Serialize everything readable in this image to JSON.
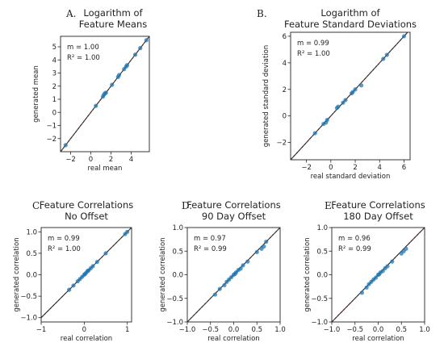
{
  "chart_data": [
    {
      "id": "A",
      "type": "scatter",
      "panel_label": "A.",
      "title_lines": [
        "Logarithm of",
        "Feature Means"
      ],
      "xlabel": "real mean",
      "ylabel": "generated mean",
      "xlim": [
        -3,
        5.8
      ],
      "ylim": [
        -3,
        5.8
      ],
      "xticks": [
        -2,
        0,
        2,
        4
      ],
      "yticks": [
        -2,
        -1,
        0,
        1,
        2,
        3,
        4,
        5
      ],
      "annotation": {
        "m": "m = 1.00",
        "r2": "R² = 1.00"
      },
      "reference_line": "identity",
      "marker_color": "#1f77b4",
      "points": [
        {
          "x": -2.5,
          "y": -2.5
        },
        {
          "x": 0.5,
          "y": 0.5
        },
        {
          "x": 1.2,
          "y": 1.2
        },
        {
          "x": 1.3,
          "y": 1.35
        },
        {
          "x": 1.4,
          "y": 1.45
        },
        {
          "x": 1.5,
          "y": 1.5
        },
        {
          "x": 2.1,
          "y": 2.1
        },
        {
          "x": 2.7,
          "y": 2.7
        },
        {
          "x": 2.8,
          "y": 2.85
        },
        {
          "x": 3.3,
          "y": 3.3
        },
        {
          "x": 3.5,
          "y": 3.5
        },
        {
          "x": 3.6,
          "y": 3.6
        },
        {
          "x": 4.4,
          "y": 4.4
        },
        {
          "x": 4.9,
          "y": 4.9
        },
        {
          "x": 5.5,
          "y": 5.5
        }
      ]
    },
    {
      "id": "B",
      "type": "scatter",
      "panel_label": "B.",
      "title_lines": [
        "Logarithm of",
        "Feature Standard Deviations"
      ],
      "xlabel": "real standard deviation",
      "ylabel": "generated standard deviation",
      "xlim": [
        -3.3,
        6.5
      ],
      "ylim": [
        -3.3,
        6.3
      ],
      "xticks": [
        -2,
        0,
        2,
        4,
        6
      ],
      "yticks": [
        -2,
        0,
        2,
        4,
        6
      ],
      "annotation": {
        "m": "m = 0.99",
        "r2": "R² = 1.00"
      },
      "reference_line": "identity",
      "marker_color": "#1f77b4",
      "points": [
        {
          "x": -1.3,
          "y": -1.3
        },
        {
          "x": -0.6,
          "y": -0.6
        },
        {
          "x": -0.4,
          "y": -0.5
        },
        {
          "x": -0.3,
          "y": -0.3
        },
        {
          "x": 0.5,
          "y": 0.6
        },
        {
          "x": 0.6,
          "y": 0.7
        },
        {
          "x": 1.0,
          "y": 1.0
        },
        {
          "x": 1.2,
          "y": 1.2
        },
        {
          "x": 1.7,
          "y": 1.7
        },
        {
          "x": 1.8,
          "y": 1.8
        },
        {
          "x": 2.0,
          "y": 2.0
        },
        {
          "x": 2.5,
          "y": 2.3
        },
        {
          "x": 4.3,
          "y": 4.3
        },
        {
          "x": 4.6,
          "y": 4.6
        },
        {
          "x": 6.0,
          "y": 6.0
        }
      ]
    },
    {
      "id": "C",
      "type": "scatter",
      "panel_label": "C.",
      "title_lines": [
        "Feature Correlations",
        "No Offset"
      ],
      "xlabel": "real correlation",
      "ylabel": "generated correlation",
      "xlim": [
        -1.0,
        1.1
      ],
      "ylim": [
        -1.1,
        1.1
      ],
      "xticks": [
        -1,
        0,
        1
      ],
      "yticks": [
        -1.0,
        -0.5,
        0.0,
        0.5,
        1.0
      ],
      "yticklabels": [
        "−1.0",
        "−0.5",
        "0.0",
        "0.5",
        "1.0"
      ],
      "xticklabels": [
        "−1",
        "0",
        "1"
      ],
      "annotation": {
        "m": "m = 0.99",
        "r2": "R² = 1.00"
      },
      "reference_line": "identity",
      "marker_color": "#1f77b4",
      "points": [
        {
          "x": -0.35,
          "y": -0.35
        },
        {
          "x": -0.25,
          "y": -0.25
        },
        {
          "x": -0.15,
          "y": -0.15
        },
        {
          "x": -0.1,
          "y": -0.1
        },
        {
          "x": -0.05,
          "y": -0.05
        },
        {
          "x": 0.0,
          "y": 0.0
        },
        {
          "x": 0.02,
          "y": 0.02
        },
        {
          "x": 0.05,
          "y": 0.05
        },
        {
          "x": 0.08,
          "y": 0.09
        },
        {
          "x": 0.1,
          "y": 0.1
        },
        {
          "x": 0.15,
          "y": 0.15
        },
        {
          "x": 0.2,
          "y": 0.2
        },
        {
          "x": 0.3,
          "y": 0.3
        },
        {
          "x": 0.5,
          "y": 0.5
        },
        {
          "x": 0.95,
          "y": 0.95
        },
        {
          "x": 1.0,
          "y": 1.0
        }
      ]
    },
    {
      "id": "D",
      "type": "scatter",
      "panel_label": "D.",
      "title_lines": [
        "Feature Correlations",
        "90 Day Offset"
      ],
      "xlabel": "real correlation",
      "ylabel": "generated correlation",
      "xlim": [
        -1.0,
        1.0
      ],
      "ylim": [
        -1.0,
        1.0
      ],
      "xticks": [
        -1.0,
        -0.5,
        0.0,
        0.5,
        1.0
      ],
      "yticks": [
        -1.0,
        -0.5,
        0.0,
        0.5,
        1.0
      ],
      "xticklabels": [
        "−1.0",
        "−0.5",
        "0.0",
        "0.5",
        "1.0"
      ],
      "yticklabels": [
        "−1.0",
        "−0.5",
        "0.0",
        "0.5",
        "1.0"
      ],
      "annotation": {
        "m": "m = 0.97",
        "r2": "R² = 0.99"
      },
      "reference_line": "identity",
      "marker_color": "#1f77b4",
      "points": [
        {
          "x": -0.4,
          "y": -0.42
        },
        {
          "x": -0.3,
          "y": -0.3
        },
        {
          "x": -0.2,
          "y": -0.22
        },
        {
          "x": -0.15,
          "y": -0.15
        },
        {
          "x": -0.1,
          "y": -0.1
        },
        {
          "x": -0.05,
          "y": -0.05
        },
        {
          "x": 0.0,
          "y": 0.0
        },
        {
          "x": 0.03,
          "y": 0.02
        },
        {
          "x": 0.05,
          "y": 0.05
        },
        {
          "x": 0.1,
          "y": 0.1
        },
        {
          "x": 0.15,
          "y": 0.13
        },
        {
          "x": 0.2,
          "y": 0.2
        },
        {
          "x": 0.3,
          "y": 0.28
        },
        {
          "x": 0.5,
          "y": 0.48
        },
        {
          "x": 0.6,
          "y": 0.55
        },
        {
          "x": 0.65,
          "y": 0.6
        },
        {
          "x": 0.7,
          "y": 0.7
        }
      ]
    },
    {
      "id": "E",
      "type": "scatter",
      "panel_label": "E.",
      "title_lines": [
        "Feature Correlations",
        "180 Day Offset"
      ],
      "xlabel": "real correlation",
      "ylabel": "generated correlation",
      "xlim": [
        -1.0,
        1.0
      ],
      "ylim": [
        -1.0,
        1.0
      ],
      "xticks": [
        -1.0,
        -0.5,
        0.0,
        0.5,
        1.0
      ],
      "yticks": [
        -1.0,
        -0.5,
        0.0,
        0.5,
        1.0
      ],
      "xticklabels": [
        "−1.0",
        "−0.5",
        "0.0",
        "0.5",
        "1.0"
      ],
      "yticklabels": [
        "−1.0",
        "−0.5",
        "0.0",
        "0.5",
        "1.0"
      ],
      "annotation": {
        "m": "m = 0.96",
        "r2": "R² = 0.99"
      },
      "reference_line": "identity",
      "marker_color": "#1f77b4",
      "points": [
        {
          "x": -0.35,
          "y": -0.38
        },
        {
          "x": -0.25,
          "y": -0.27
        },
        {
          "x": -0.2,
          "y": -0.2
        },
        {
          "x": -0.15,
          "y": -0.15
        },
        {
          "x": -0.1,
          "y": -0.1
        },
        {
          "x": -0.05,
          "y": -0.06
        },
        {
          "x": 0.0,
          "y": 0.0
        },
        {
          "x": 0.02,
          "y": 0.01
        },
        {
          "x": 0.05,
          "y": 0.05
        },
        {
          "x": 0.1,
          "y": 0.08
        },
        {
          "x": 0.15,
          "y": 0.14
        },
        {
          "x": 0.2,
          "y": 0.18
        },
        {
          "x": 0.3,
          "y": 0.28
        },
        {
          "x": 0.5,
          "y": 0.45
        },
        {
          "x": 0.55,
          "y": 0.5
        },
        {
          "x": 0.6,
          "y": 0.55
        }
      ]
    }
  ]
}
